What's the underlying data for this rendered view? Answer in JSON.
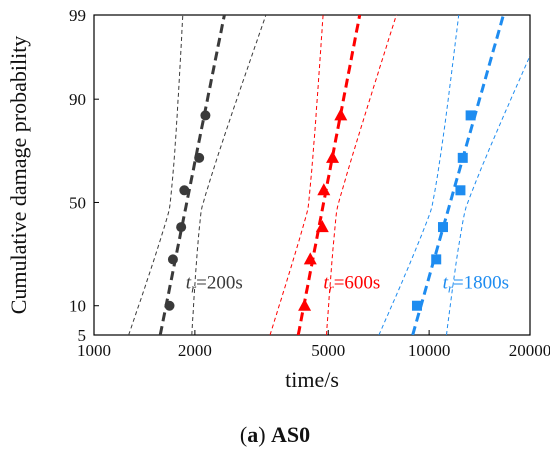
{
  "chart_data": {
    "type": "scatter",
    "title": "",
    "xlabel": "time/s",
    "ylabel": "Cumulative damage probability",
    "x_scale": "log",
    "y_scale": "probability",
    "xlim": [
      1000,
      20000
    ],
    "ylim": [
      5,
      99
    ],
    "xticks": [
      1000,
      2000,
      5000,
      10000,
      20000
    ],
    "yticks": [
      5,
      10,
      50,
      90,
      99
    ],
    "grid": false,
    "legend": "none",
    "series": [
      {
        "marker": "circle",
        "color": "#3a3a3a",
        "annotation": {
          "t": "t",
          "sub": "r",
          "text": "=200s"
        },
        "x": [
          1680,
          1720,
          1820,
          1860,
          2060,
          2150
        ],
        "y": [
          10,
          24,
          38,
          56,
          71,
          86
        ]
      },
      {
        "marker": "triangle",
        "color": "#ff0000",
        "annotation": {
          "t": "t",
          "sub": "r",
          "text": "=600s"
        },
        "x": [
          4250,
          4420,
          4800,
          4850,
          5150,
          5450
        ],
        "y": [
          10,
          24,
          38,
          56,
          71,
          86
        ]
      },
      {
        "marker": "square",
        "color": "#1e8cf0",
        "annotation": {
          "t": "t",
          "sub": "r",
          "text": "=1800s"
        },
        "x": [
          9200,
          10500,
          11000,
          12400,
          12600,
          13300
        ],
        "y": [
          10,
          24,
          38,
          56,
          71,
          86
        ]
      }
    ]
  },
  "caption": {
    "prefix": "(",
    "bold": "a",
    "middle": ") ",
    "title": "AS0"
  }
}
